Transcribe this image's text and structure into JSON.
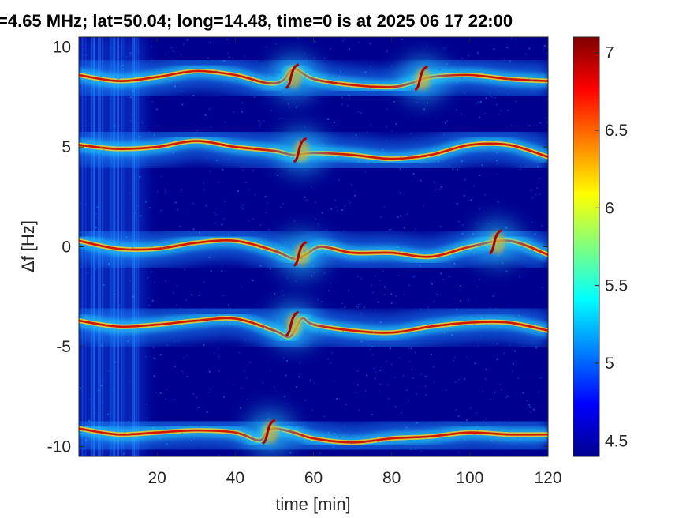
{
  "chart_data": {
    "type": "heatmap",
    "title": "=4.65 MHz;  lat=50.04; long=14.48, time=0 is at 2025 06 17 22:00",
    "xlabel": "time [min]",
    "ylabel": "Δf [Hz]",
    "xlim": [
      0,
      120
    ],
    "ylim": [
      -10.5,
      10.5
    ],
    "xticks": [
      20,
      40,
      60,
      80,
      100,
      120
    ],
    "yticks": [
      -10,
      -5,
      0,
      5,
      10
    ],
    "colorbar": {
      "ticks": [
        4.5,
        5,
        5.5,
        6,
        6.5,
        7
      ],
      "range": [
        4.4,
        7.1
      ],
      "colormap": "jet"
    },
    "series": [
      {
        "x": [
          0,
          10,
          20,
          30,
          40,
          48,
          52,
          55,
          60,
          70,
          80,
          85,
          90,
          100,
          110,
          120
        ],
        "y": [
          8.6,
          8.3,
          8.5,
          8.8,
          8.6,
          8.2,
          8.3,
          8.9,
          8.4,
          8.1,
          8.0,
          8.2,
          8.5,
          8.6,
          8.4,
          8.3
        ]
      },
      {
        "x": [
          0,
          10,
          20,
          30,
          40,
          50,
          55,
          60,
          70,
          80,
          90,
          100,
          110,
          120
        ],
        "y": [
          5.1,
          4.9,
          5.0,
          5.3,
          5.0,
          4.8,
          4.6,
          4.7,
          4.6,
          4.4,
          4.6,
          5.1,
          5.1,
          4.5
        ]
      },
      {
        "x": [
          0,
          10,
          20,
          30,
          40,
          50,
          55,
          58,
          62,
          70,
          80,
          90,
          100,
          110,
          120
        ],
        "y": [
          0.3,
          -0.1,
          -0.1,
          0.2,
          0.3,
          -0.2,
          -0.6,
          -0.4,
          0.0,
          -0.3,
          -0.3,
          -0.5,
          0.0,
          0.3,
          -0.4
        ]
      },
      {
        "x": [
          0,
          10,
          20,
          30,
          40,
          50,
          54,
          57,
          60,
          70,
          80,
          90,
          100,
          110,
          120
        ],
        "y": [
          -3.7,
          -4.0,
          -3.9,
          -3.7,
          -3.6,
          -4.2,
          -4.5,
          -3.6,
          -3.9,
          -4.2,
          -4.3,
          -4.0,
          -3.8,
          -3.8,
          -4.2
        ]
      },
      {
        "x": [
          0,
          10,
          20,
          30,
          40,
          46,
          48,
          50,
          55,
          60,
          70,
          80,
          90,
          100,
          110,
          120
        ],
        "y": [
          -9.1,
          -9.4,
          -9.3,
          -9.2,
          -9.3,
          -9.7,
          -9.3,
          -9.1,
          -9.3,
          -9.6,
          -9.8,
          -9.6,
          -9.5,
          -9.3,
          -9.4,
          -9.4
        ]
      }
    ],
    "disturbances": [
      {
        "t": 55,
        "df": 8.5
      },
      {
        "t": 57,
        "df": 4.8
      },
      {
        "t": 57,
        "df": -0.4
      },
      {
        "t": 55,
        "df": -3.9
      },
      {
        "t": 49,
        "df": -9.3
      },
      {
        "t": 88,
        "df": 8.4
      },
      {
        "t": 107,
        "df": 0.2
      }
    ]
  }
}
